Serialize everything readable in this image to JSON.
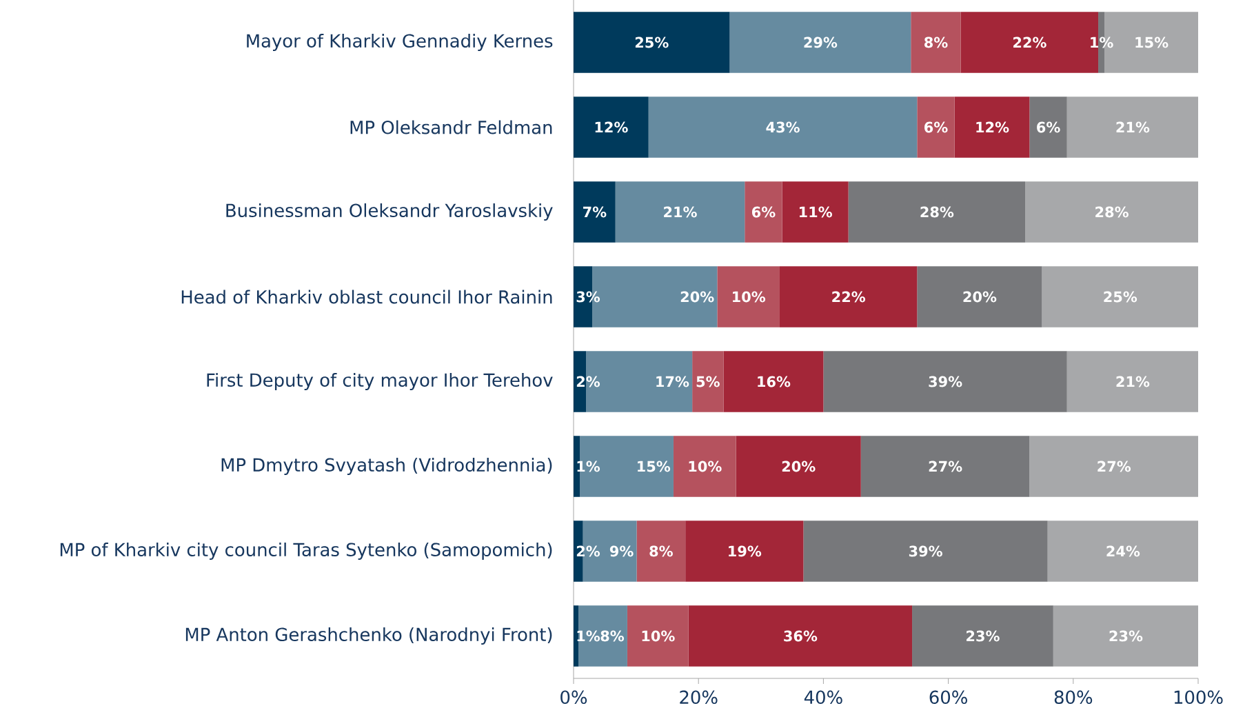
{
  "chart_data": {
    "type": "bar",
    "orientation": "horizontal",
    "stacked": true,
    "categories": [
      "Mayor of Kharkiv Gennadiy Kernes",
      "MP Oleksandr Feldman",
      "Businessman Oleksandr Yaroslavskiy",
      "Head of Kharkiv oblast council Ihor Rainin",
      "First Deputy of city mayor Ihor Terehov",
      "MP Dmytro Svyatash (Vidrodzhennia)",
      "MP of Kharkiv city council Taras Sytenko (Samopomich)",
      "MP Anton Gerashchenko (Narodnyi Front)"
    ],
    "series": [
      {
        "color": "#003a5c",
        "values": [
          25,
          12,
          6.7,
          3,
          2,
          1,
          1.5,
          0.8
        ],
        "value_labels": [
          "25%",
          "12%",
          "7%",
          "3%",
          "2%",
          "1%",
          "2%",
          "1%"
        ]
      },
      {
        "color": "#668ba0",
        "values": [
          29,
          43,
          20.7,
          20,
          17,
          15,
          8.6,
          7.8
        ],
        "value_labels": [
          "29%",
          "43%",
          "21%",
          "20%",
          "17%",
          "15%",
          "9%",
          "8%"
        ]
      },
      {
        "color": "#b5525e",
        "values": [
          8,
          6,
          6,
          10,
          5,
          10,
          7.8,
          9.8
        ],
        "value_labels": [
          "8%",
          "6%",
          "6%",
          "10%",
          "5%",
          "10%",
          "8%",
          "10%"
        ]
      },
      {
        "color": "#a32638",
        "values": [
          22,
          12,
          10.6,
          22,
          16,
          20,
          18.9,
          35.8
        ],
        "value_labels": [
          "22%",
          "12%",
          "11%",
          "22%",
          "16%",
          "20%",
          "19%",
          "36%"
        ]
      },
      {
        "color": "#77787b",
        "values": [
          1,
          6,
          28.3,
          20,
          39,
          27,
          39.1,
          22.6
        ],
        "value_labels": [
          "1%",
          "6%",
          "28%",
          "20%",
          "39%",
          "27%",
          "39%",
          "23%"
        ]
      },
      {
        "color": "#a7a8aa",
        "values": [
          15,
          21,
          27.7,
          25,
          21,
          27,
          24.1,
          23.2
        ],
        "value_labels": [
          "15%",
          "21%",
          "28%",
          "25%",
          "21%",
          "27%",
          "24%",
          "23%"
        ]
      }
    ],
    "xlim": [
      0,
      100
    ],
    "xticks": [
      {
        "value": 0,
        "label": "0%"
      },
      {
        "value": 20,
        "label": "20%"
      },
      {
        "value": 40,
        "label": "40%"
      },
      {
        "value": 60,
        "label": "60%"
      },
      {
        "value": 80,
        "label": "80%"
      },
      {
        "value": 100,
        "label": "100%"
      }
    ],
    "grid": false
  }
}
